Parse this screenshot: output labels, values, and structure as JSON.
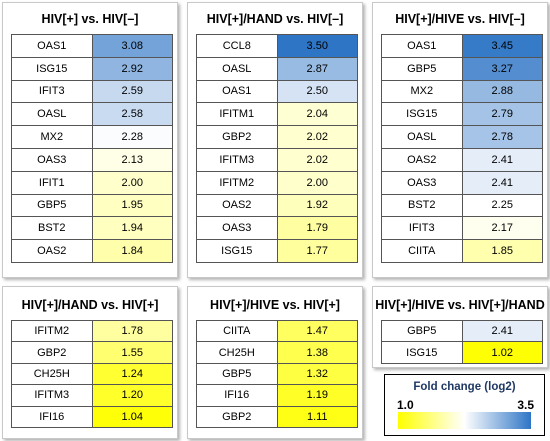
{
  "colors": {
    "low": "#ffff00",
    "mid": "#ffffff",
    "high": "#2e75c6"
  },
  "panels": [
    {
      "title": "HIV[+] vs. HIV[–]",
      "rows": [
        {
          "gene": "OAS1",
          "value": "3.08"
        },
        {
          "gene": "ISG15",
          "value": "2.92"
        },
        {
          "gene": "IFIT3",
          "value": "2.59"
        },
        {
          "gene": "OASL",
          "value": "2.58"
        },
        {
          "gene": "MX2",
          "value": "2.28"
        },
        {
          "gene": "OAS3",
          "value": "2.13"
        },
        {
          "gene": "IFIT1",
          "value": "2.00"
        },
        {
          "gene": "GBP5",
          "value": "1.95"
        },
        {
          "gene": "BST2",
          "value": "1.94"
        },
        {
          "gene": "OAS2",
          "value": "1.84"
        }
      ]
    },
    {
      "title": "HIV[+]/HAND vs. HIV[–]",
      "rows": [
        {
          "gene": "CCL8",
          "value": "3.50"
        },
        {
          "gene": "OASL",
          "value": "2.87"
        },
        {
          "gene": "OAS1",
          "value": "2.50"
        },
        {
          "gene": "IFITM1",
          "value": "2.04"
        },
        {
          "gene": "GBP2",
          "value": "2.02"
        },
        {
          "gene": "IFITM3",
          "value": "2.02"
        },
        {
          "gene": "IFITM2",
          "value": "2.00"
        },
        {
          "gene": "OAS2",
          "value": "1.92"
        },
        {
          "gene": "OAS3",
          "value": "1.79"
        },
        {
          "gene": "ISG15",
          "value": "1.77"
        }
      ]
    },
    {
      "title": "HIV[+]/HIVE vs. HIV[–]",
      "rows": [
        {
          "gene": "OAS1",
          "value": "3.45"
        },
        {
          "gene": "GBP5",
          "value": "3.27"
        },
        {
          "gene": "MX2",
          "value": "2.88"
        },
        {
          "gene": "ISG15",
          "value": "2.79"
        },
        {
          "gene": "OASL",
          "value": "2.78"
        },
        {
          "gene": "OAS2",
          "value": "2.41"
        },
        {
          "gene": "OAS3",
          "value": "2.41"
        },
        {
          "gene": "BST2",
          "value": "2.25"
        },
        {
          "gene": "IFIT3",
          "value": "2.17"
        },
        {
          "gene": "CIITA",
          "value": "1.85"
        }
      ]
    },
    {
      "title": "HIV[+]/HAND vs. HIV[+]",
      "rows": [
        {
          "gene": "IFITM2",
          "value": "1.78"
        },
        {
          "gene": "GBP2",
          "value": "1.55"
        },
        {
          "gene": "CH25H",
          "value": "1.24"
        },
        {
          "gene": "IFITM3",
          "value": "1.20"
        },
        {
          "gene": "IFI16",
          "value": "1.04"
        }
      ]
    },
    {
      "title": "HIV[+]/HIVE vs. HIV[+]",
      "rows": [
        {
          "gene": "CIITA",
          "value": "1.47"
        },
        {
          "gene": "CH25H",
          "value": "1.38"
        },
        {
          "gene": "GBP5",
          "value": "1.32"
        },
        {
          "gene": "IFI16",
          "value": "1.19"
        },
        {
          "gene": "GBP2",
          "value": "1.11"
        }
      ]
    },
    {
      "title": "HIV[+]/HIVE vs. HIV[+]/HAND",
      "rows": [
        {
          "gene": "GBP5",
          "value": "2.41"
        },
        {
          "gene": "ISG15",
          "value": "1.02"
        }
      ]
    }
  ],
  "legend": {
    "title": "Fold change (log2)",
    "min_label": "1.0",
    "max_label": "3.5",
    "min": 1.0,
    "max": 3.5
  }
}
